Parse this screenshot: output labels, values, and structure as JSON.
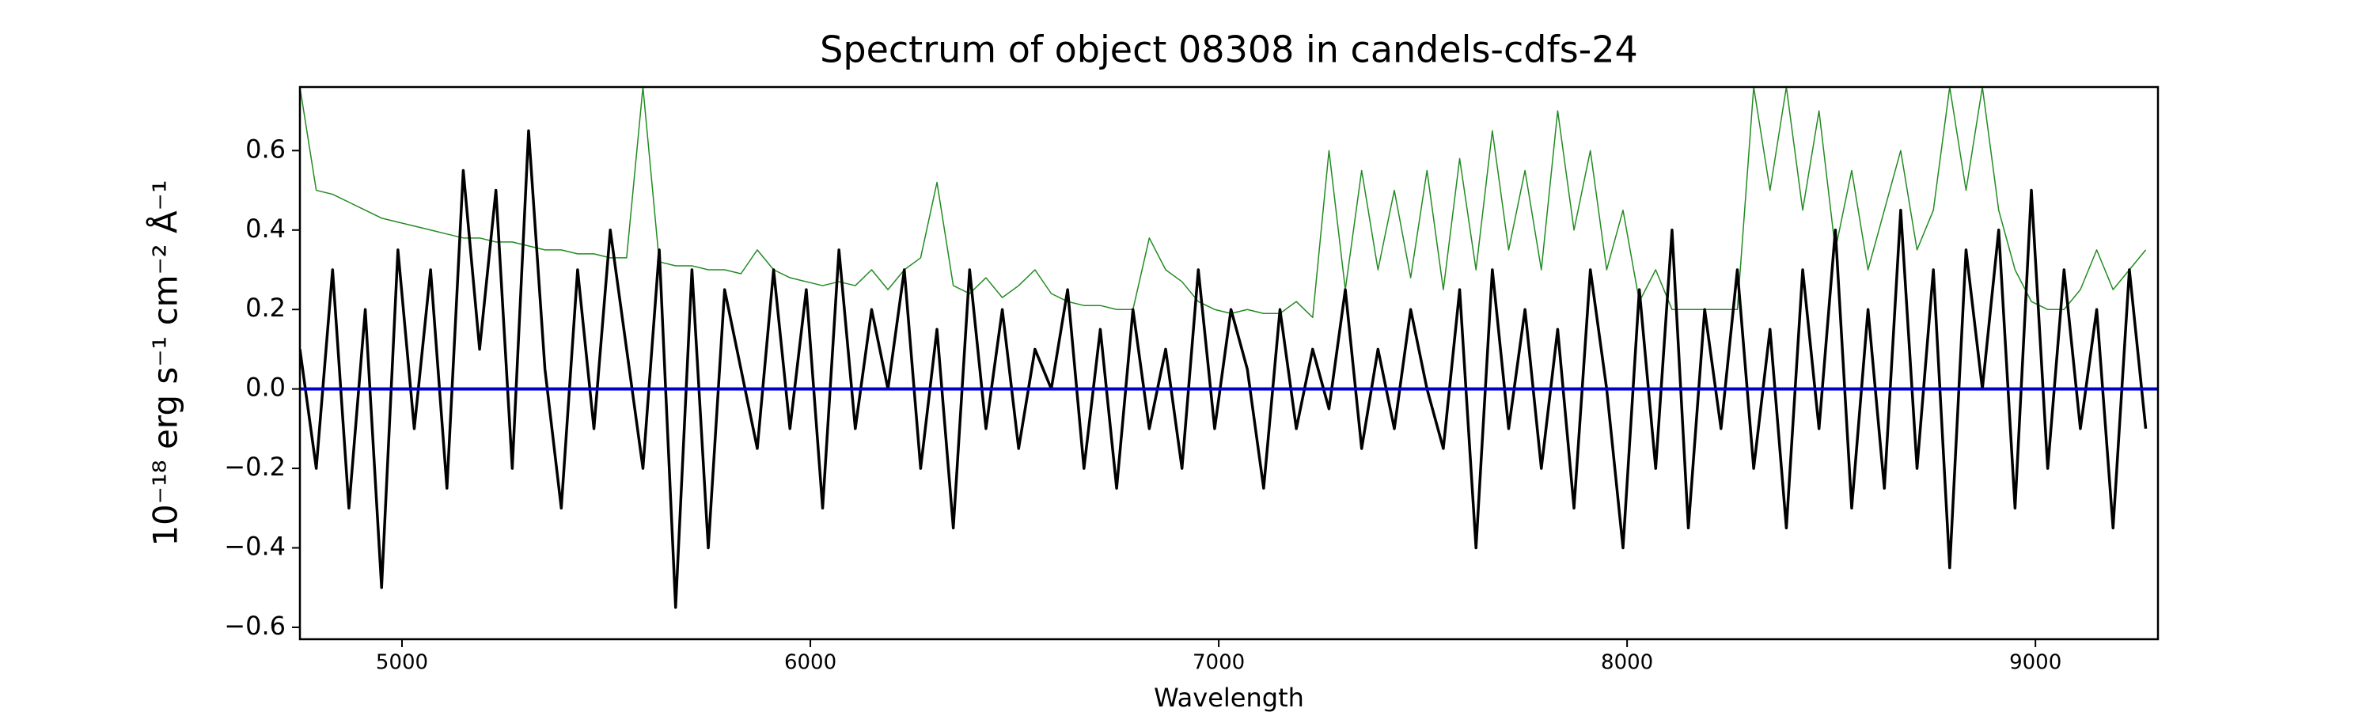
{
  "chart_data": {
    "type": "line",
    "title": "Spectrum of object 08308 in candels-cdfs-24",
    "xlabel": "Wavelength",
    "ylabel": "10⁻¹⁸ erg s⁻¹ cm⁻² Å⁻¹",
    "xlim": [
      4750,
      9300
    ],
    "ylim": [
      -0.63,
      0.76
    ],
    "xticks": [
      5000,
      6000,
      7000,
      8000,
      9000
    ],
    "yticks": [
      {
        "value": -0.6,
        "label": "−0.6"
      },
      {
        "value": -0.4,
        "label": "−0.4"
      },
      {
        "value": -0.2,
        "label": "−0.2"
      },
      {
        "value": 0,
        "label": "0.0"
      },
      {
        "value": 0.2,
        "label": "0.2"
      },
      {
        "value": 0.4,
        "label": "0.4"
      },
      {
        "value": 0.6,
        "label": "0.6"
      }
    ],
    "grid": false,
    "series": [
      {
        "color": "#228b22",
        "width": 1.5,
        "x": [
          4750,
          4790,
          4830,
          4870,
          4910,
          4950,
          4990,
          5030,
          5070,
          5110,
          5150,
          5190,
          5230,
          5270,
          5310,
          5350,
          5390,
          5430,
          5470,
          5510,
          5550,
          5590,
          5630,
          5670,
          5710,
          5750,
          5790,
          5830,
          5870,
          5910,
          5950,
          5990,
          6030,
          6070,
          6110,
          6150,
          6190,
          6230,
          6270,
          6310,
          6350,
          6390,
          6430,
          6470,
          6510,
          6550,
          6590,
          6630,
          6670,
          6710,
          6750,
          6790,
          6830,
          6870,
          6910,
          6950,
          6990,
          7030,
          7070,
          7110,
          7150,
          7190,
          7230,
          7270,
          7310,
          7350,
          7390,
          7430,
          7470,
          7510,
          7550,
          7590,
          7630,
          7670,
          7710,
          7750,
          7790,
          7830,
          7870,
          7910,
          7950,
          7990,
          8030,
          8070,
          8110,
          8150,
          8190,
          8230,
          8270,
          8310,
          8350,
          8390,
          8430,
          8470,
          8510,
          8550,
          8590,
          8630,
          8670,
          8710,
          8750,
          8790,
          8830,
          8870,
          8910,
          8950,
          8990,
          9030,
          9070,
          9110,
          9150,
          9190,
          9230,
          9270
        ],
        "values": [
          0.76,
          0.5,
          0.49,
          0.47,
          0.45,
          0.43,
          0.42,
          0.41,
          0.4,
          0.39,
          0.38,
          0.38,
          0.37,
          0.37,
          0.36,
          0.35,
          0.35,
          0.34,
          0.34,
          0.33,
          0.33,
          0.76,
          0.32,
          0.31,
          0.31,
          0.3,
          0.3,
          0.29,
          0.35,
          0.3,
          0.28,
          0.27,
          0.26,
          0.27,
          0.26,
          0.3,
          0.25,
          0.3,
          0.33,
          0.52,
          0.26,
          0.24,
          0.28,
          0.23,
          0.26,
          0.3,
          0.24,
          0.22,
          0.21,
          0.21,
          0.2,
          0.2,
          0.38,
          0.3,
          0.27,
          0.22,
          0.2,
          0.19,
          0.2,
          0.19,
          0.19,
          0.22,
          0.18,
          0.6,
          0.25,
          0.55,
          0.3,
          0.5,
          0.28,
          0.55,
          0.25,
          0.58,
          0.3,
          0.65,
          0.35,
          0.55,
          0.3,
          0.7,
          0.4,
          0.6,
          0.3,
          0.45,
          0.22,
          0.3,
          0.2,
          0.2,
          0.2,
          0.2,
          0.2,
          0.76,
          0.5,
          0.76,
          0.45,
          0.7,
          0.35,
          0.55,
          0.3,
          0.45,
          0.6,
          0.35,
          0.45,
          0.76,
          0.5,
          0.76,
          0.45,
          0.3,
          0.22,
          0.2,
          0.2,
          0.25,
          0.35,
          0.25,
          0.3,
          0.35
        ]
      },
      {
        "color": "#000000",
        "width": 3.5,
        "x": [
          4750,
          4790,
          4830,
          4870,
          4910,
          4950,
          4990,
          5030,
          5070,
          5110,
          5150,
          5190,
          5230,
          5270,
          5310,
          5350,
          5390,
          5430,
          5470,
          5510,
          5550,
          5590,
          5630,
          5670,
          5710,
          5750,
          5790,
          5830,
          5870,
          5910,
          5950,
          5990,
          6030,
          6070,
          6110,
          6150,
          6190,
          6230,
          6270,
          6310,
          6350,
          6390,
          6430,
          6470,
          6510,
          6550,
          6590,
          6630,
          6670,
          6710,
          6750,
          6790,
          6830,
          6870,
          6910,
          6950,
          6990,
          7030,
          7070,
          7110,
          7150,
          7190,
          7230,
          7270,
          7310,
          7350,
          7390,
          7430,
          7470,
          7510,
          7550,
          7590,
          7630,
          7670,
          7710,
          7750,
          7790,
          7830,
          7870,
          7910,
          7950,
          7990,
          8030,
          8070,
          8110,
          8150,
          8190,
          8230,
          8270,
          8310,
          8350,
          8390,
          8430,
          8470,
          8510,
          8550,
          8590,
          8630,
          8670,
          8710,
          8750,
          8790,
          8830,
          8870,
          8910,
          8950,
          8990,
          9030,
          9070,
          9110,
          9150,
          9190,
          9230,
          9270
        ],
        "values": [
          0.1,
          -0.2,
          0.3,
          -0.3,
          0.2,
          -0.5,
          0.35,
          -0.1,
          0.3,
          -0.25,
          0.55,
          0.1,
          0.5,
          -0.2,
          0.65,
          0.05,
          -0.3,
          0.3,
          -0.1,
          0.4,
          0.1,
          -0.2,
          0.35,
          -0.55,
          0.3,
          -0.4,
          0.25,
          0.05,
          -0.15,
          0.3,
          -0.1,
          0.25,
          -0.3,
          0.35,
          -0.1,
          0.2,
          0.0,
          0.3,
          -0.2,
          0.15,
          -0.35,
          0.3,
          -0.1,
          0.2,
          -0.15,
          0.1,
          0.0,
          0.25,
          -0.2,
          0.15,
          -0.25,
          0.2,
          -0.1,
          0.1,
          -0.2,
          0.3,
          -0.1,
          0.2,
          0.05,
          -0.25,
          0.2,
          -0.1,
          0.1,
          -0.05,
          0.25,
          -0.15,
          0.1,
          -0.1,
          0.2,
          0.0,
          -0.15,
          0.25,
          -0.4,
          0.3,
          -0.1,
          0.2,
          -0.2,
          0.15,
          -0.3,
          0.3,
          0.0,
          -0.4,
          0.25,
          -0.2,
          0.4,
          -0.35,
          0.2,
          -0.1,
          0.3,
          -0.2,
          0.15,
          -0.35,
          0.3,
          -0.1,
          0.4,
          -0.3,
          0.2,
          -0.25,
          0.45,
          -0.2,
          0.3,
          -0.45,
          0.35,
          0.0,
          0.4,
          -0.3,
          0.5,
          -0.2,
          0.3,
          -0.1,
          0.2,
          -0.35,
          0.3,
          -0.1
        ]
      },
      {
        "color": "#0000cd",
        "width": 4,
        "x": [
          4750,
          9300
        ],
        "values": [
          0,
          0
        ]
      }
    ]
  }
}
